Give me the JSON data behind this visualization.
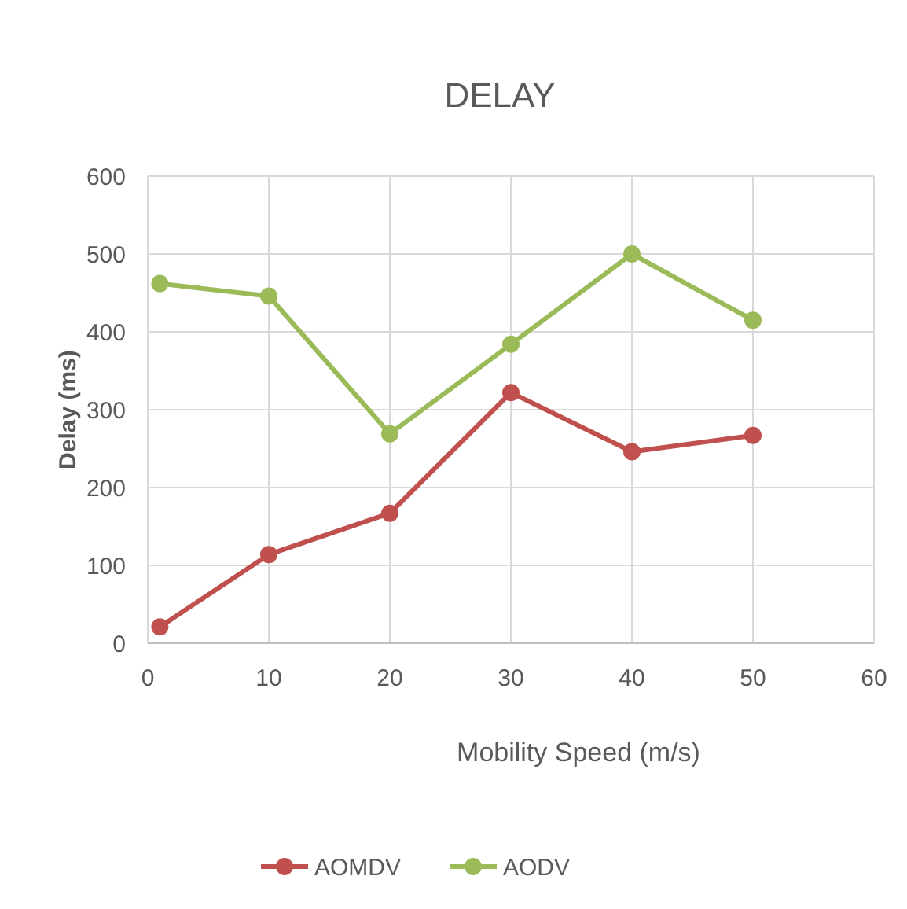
{
  "chart_data": {
    "type": "line",
    "title": "DELAY",
    "xlabel": "Mobility Speed (m/s)",
    "ylabel": "Delay (ms)",
    "x": [
      1,
      10,
      20,
      30,
      40,
      50
    ],
    "series": [
      {
        "name": "AOMDV",
        "color": "#c0504d",
        "values": [
          21,
          114,
          167,
          322,
          246,
          267
        ]
      },
      {
        "name": "AODV",
        "color": "#9bbb59",
        "values": [
          462,
          446,
          269,
          384,
          500,
          415
        ]
      }
    ],
    "xlim": [
      0,
      60
    ],
    "xticks": [
      0,
      10,
      20,
      30,
      40,
      50,
      60
    ],
    "ylim": [
      0,
      600
    ],
    "yticks": [
      0,
      100,
      200,
      300,
      400,
      500,
      600
    ],
    "grid": true,
    "legend": "bottom",
    "marker": "circle",
    "line_style": "solid"
  }
}
